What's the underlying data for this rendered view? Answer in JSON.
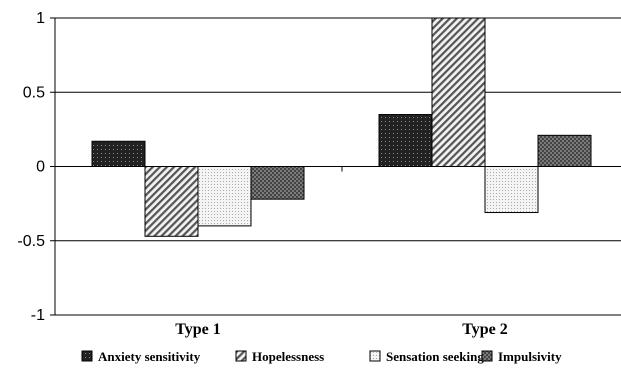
{
  "chart_data": {
    "type": "bar",
    "categories": [
      "Type 1",
      "Type 2"
    ],
    "series": [
      {
        "name": "Anxiety sensitivity",
        "values": [
          0.17,
          0.35
        ],
        "pattern": "dots-dark"
      },
      {
        "name": "Hopelessness",
        "values": [
          -0.47,
          1.0
        ],
        "pattern": "diagonal"
      },
      {
        "name": "Sensation seeking",
        "values": [
          -0.4,
          -0.31
        ],
        "pattern": "dots-light"
      },
      {
        "name": "Impulsivity",
        "values": [
          -0.22,
          0.21
        ],
        "pattern": "checker"
      }
    ],
    "yticks": [
      "1",
      "0.5",
      "0",
      "-0.5",
      "-1"
    ],
    "ylim": [
      -1,
      1
    ],
    "grid": true,
    "legend_position": "bottom",
    "title": "",
    "xlabel": "",
    "ylabel": ""
  }
}
